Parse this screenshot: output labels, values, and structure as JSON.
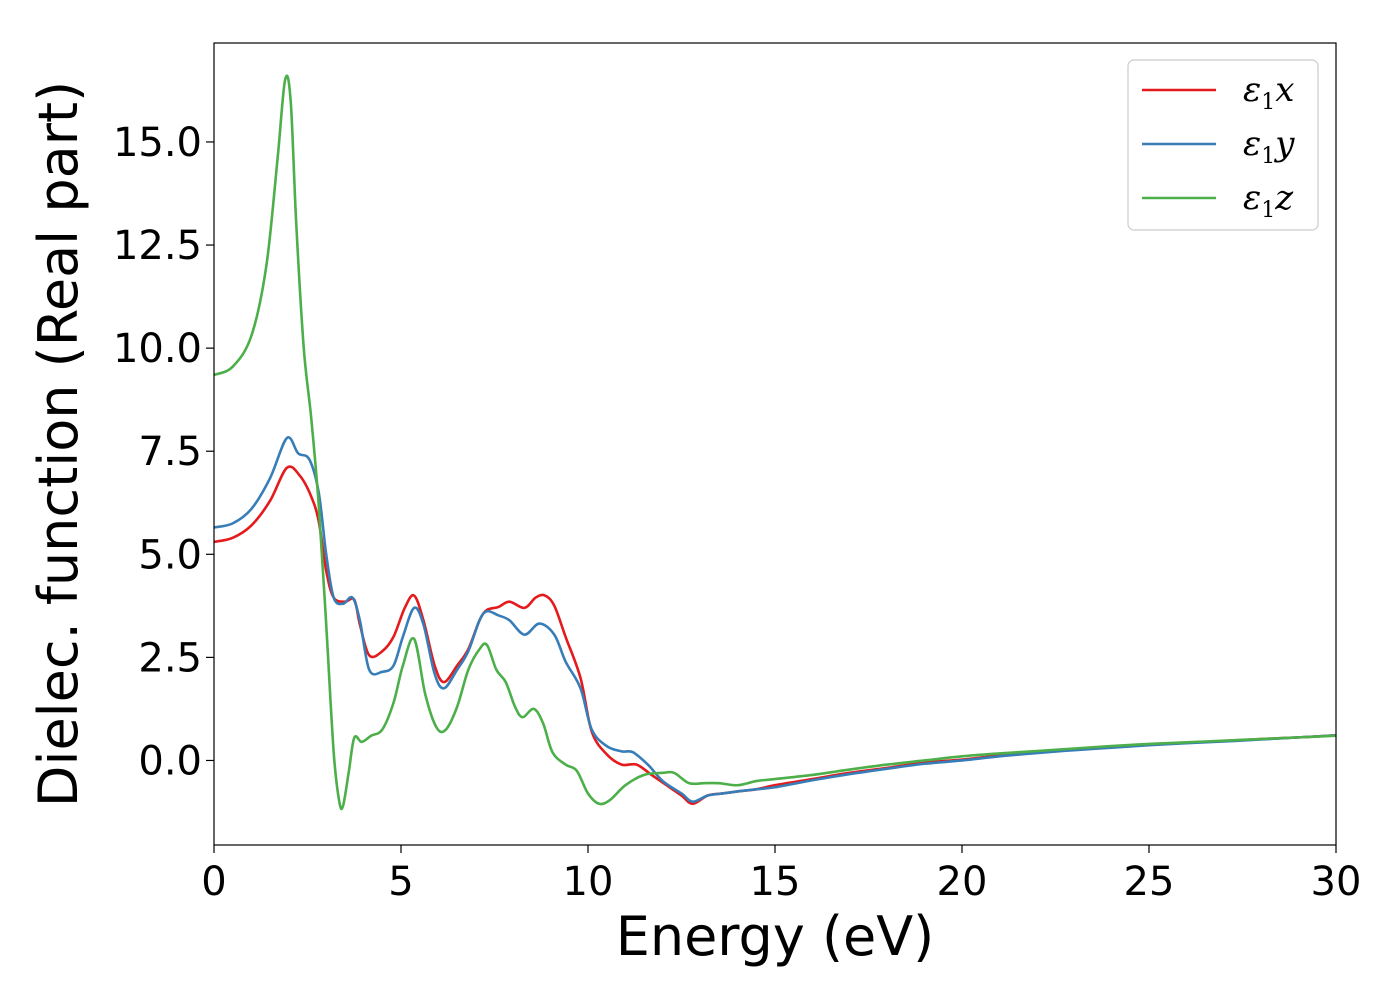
{
  "chart_data": {
    "type": "line",
    "title": "",
    "xlabel": "Energy (eV)",
    "ylabel": "Dielec. function (Real part)",
    "xlim": [
      0,
      30
    ],
    "ylim": [
      -2.05,
      17.4
    ],
    "xticks": [
      0,
      5,
      10,
      15,
      20,
      25,
      30
    ],
    "xtick_labels": [
      "0",
      "5",
      "10",
      "15",
      "20",
      "25",
      "30"
    ],
    "yticks": [
      0.0,
      2.5,
      5.0,
      7.5,
      10.0,
      12.5,
      15.0
    ],
    "ytick_labels": [
      "0.0",
      "2.5",
      "5.0",
      "7.5",
      "10.0",
      "12.5",
      "15.0"
    ],
    "grid": false,
    "legend_position": "top-right",
    "series": [
      {
        "name": "ε₁x",
        "legend_base": "ε",
        "legend_sub": "1",
        "legend_suffix": "x",
        "color": "#e41a1c",
        "points": [
          [
            0,
            5.3
          ],
          [
            0.5,
            5.4
          ],
          [
            1.0,
            5.7
          ],
          [
            1.5,
            6.3
          ],
          [
            1.95,
            7.1
          ],
          [
            2.3,
            6.9
          ],
          [
            2.6,
            6.4
          ],
          [
            2.8,
            5.8
          ],
          [
            3.0,
            4.6
          ],
          [
            3.2,
            3.95
          ],
          [
            3.5,
            3.85
          ],
          [
            3.75,
            3.9
          ],
          [
            3.9,
            3.3
          ],
          [
            4.15,
            2.55
          ],
          [
            4.5,
            2.65
          ],
          [
            4.8,
            3.0
          ],
          [
            5.1,
            3.7
          ],
          [
            5.35,
            4.0
          ],
          [
            5.6,
            3.4
          ],
          [
            5.9,
            2.3
          ],
          [
            6.15,
            1.9
          ],
          [
            6.5,
            2.3
          ],
          [
            6.8,
            2.7
          ],
          [
            7.1,
            3.4
          ],
          [
            7.3,
            3.65
          ],
          [
            7.6,
            3.72
          ],
          [
            7.9,
            3.85
          ],
          [
            8.3,
            3.7
          ],
          [
            8.6,
            3.95
          ],
          [
            8.85,
            4.0
          ],
          [
            9.1,
            3.75
          ],
          [
            9.4,
            3.0
          ],
          [
            9.8,
            2.0
          ],
          [
            10.1,
            0.7
          ],
          [
            10.5,
            0.15
          ],
          [
            10.9,
            -0.1
          ],
          [
            11.3,
            -0.1
          ],
          [
            11.7,
            -0.35
          ],
          [
            12.1,
            -0.6
          ],
          [
            12.5,
            -0.85
          ],
          [
            12.8,
            -1.05
          ],
          [
            13.2,
            -0.85
          ],
          [
            13.6,
            -0.8
          ],
          [
            14.0,
            -0.75
          ],
          [
            14.5,
            -0.7
          ],
          [
            15,
            -0.6
          ],
          [
            16,
            -0.45
          ],
          [
            17,
            -0.3
          ],
          [
            18,
            -0.18
          ],
          [
            19,
            -0.05
          ],
          [
            20,
            0.02
          ],
          [
            21,
            0.12
          ],
          [
            22,
            0.2
          ],
          [
            23,
            0.27
          ],
          [
            24,
            0.33
          ],
          [
            25,
            0.38
          ],
          [
            26,
            0.43
          ],
          [
            27,
            0.47
          ],
          [
            28,
            0.52
          ],
          [
            29,
            0.56
          ],
          [
            30,
            0.61
          ]
        ]
      },
      {
        "name": "ε₁y",
        "legend_base": "ε",
        "legend_sub": "1",
        "legend_suffix": "y",
        "color": "#377eb8",
        "points": [
          [
            0,
            5.65
          ],
          [
            0.5,
            5.75
          ],
          [
            1.0,
            6.1
          ],
          [
            1.5,
            6.85
          ],
          [
            1.95,
            7.82
          ],
          [
            2.25,
            7.45
          ],
          [
            2.55,
            7.3
          ],
          [
            2.8,
            6.5
          ],
          [
            3.0,
            5.0
          ],
          [
            3.2,
            3.95
          ],
          [
            3.45,
            3.8
          ],
          [
            3.7,
            3.95
          ],
          [
            3.9,
            3.4
          ],
          [
            4.15,
            2.2
          ],
          [
            4.5,
            2.15
          ],
          [
            4.8,
            2.3
          ],
          [
            5.05,
            3.0
          ],
          [
            5.35,
            3.7
          ],
          [
            5.6,
            3.3
          ],
          [
            5.9,
            2.1
          ],
          [
            6.15,
            1.75
          ],
          [
            6.5,
            2.2
          ],
          [
            6.8,
            2.65
          ],
          [
            7.1,
            3.4
          ],
          [
            7.3,
            3.62
          ],
          [
            7.6,
            3.52
          ],
          [
            7.9,
            3.4
          ],
          [
            8.3,
            3.05
          ],
          [
            8.7,
            3.32
          ],
          [
            9.1,
            3.05
          ],
          [
            9.4,
            2.4
          ],
          [
            9.8,
            1.75
          ],
          [
            10.1,
            0.75
          ],
          [
            10.5,
            0.35
          ],
          [
            10.9,
            0.22
          ],
          [
            11.2,
            0.2
          ],
          [
            11.6,
            -0.1
          ],
          [
            12.0,
            -0.5
          ],
          [
            12.5,
            -0.8
          ],
          [
            12.8,
            -1.0
          ],
          [
            13.2,
            -0.85
          ],
          [
            13.6,
            -0.8
          ],
          [
            14.0,
            -0.75
          ],
          [
            14.5,
            -0.7
          ],
          [
            15,
            -0.65
          ],
          [
            16,
            -0.48
          ],
          [
            17,
            -0.33
          ],
          [
            18,
            -0.2
          ],
          [
            19,
            -0.08
          ],
          [
            20,
            0.0
          ],
          [
            21,
            0.1
          ],
          [
            22,
            0.18
          ],
          [
            23,
            0.25
          ],
          [
            24,
            0.31
          ],
          [
            25,
            0.37
          ],
          [
            26,
            0.42
          ],
          [
            27,
            0.46
          ],
          [
            28,
            0.51
          ],
          [
            29,
            0.56
          ],
          [
            30,
            0.61
          ]
        ]
      },
      {
        "name": "ε₁z",
        "legend_base": "ε",
        "legend_sub": "1",
        "legend_suffix": "z",
        "color": "#4daf4a",
        "points": [
          [
            0,
            9.35
          ],
          [
            0.5,
            9.55
          ],
          [
            1.0,
            10.3
          ],
          [
            1.4,
            12.0
          ],
          [
            1.7,
            14.6
          ],
          [
            1.9,
            16.5
          ],
          [
            2.05,
            16.0
          ],
          [
            2.2,
            13.0
          ],
          [
            2.4,
            10.0
          ],
          [
            2.6,
            8.3
          ],
          [
            2.8,
            6.2
          ],
          [
            3.0,
            3.3
          ],
          [
            3.2,
            0.2
          ],
          [
            3.35,
            -1.0
          ],
          [
            3.45,
            -1.1
          ],
          [
            3.6,
            -0.3
          ],
          [
            3.75,
            0.55
          ],
          [
            3.95,
            0.45
          ],
          [
            4.2,
            0.6
          ],
          [
            4.5,
            0.75
          ],
          [
            4.8,
            1.4
          ],
          [
            5.05,
            2.3
          ],
          [
            5.35,
            2.95
          ],
          [
            5.65,
            1.6
          ],
          [
            5.95,
            0.8
          ],
          [
            6.2,
            0.75
          ],
          [
            6.5,
            1.3
          ],
          [
            6.8,
            2.2
          ],
          [
            7.1,
            2.7
          ],
          [
            7.3,
            2.8
          ],
          [
            7.55,
            2.2
          ],
          [
            7.8,
            1.9
          ],
          [
            8.05,
            1.3
          ],
          [
            8.25,
            1.05
          ],
          [
            8.55,
            1.25
          ],
          [
            8.8,
            0.9
          ],
          [
            9.05,
            0.2
          ],
          [
            9.4,
            -0.1
          ],
          [
            9.7,
            -0.25
          ],
          [
            10.0,
            -0.8
          ],
          [
            10.3,
            -1.05
          ],
          [
            10.6,
            -0.95
          ],
          [
            11.0,
            -0.6
          ],
          [
            11.5,
            -0.35
          ],
          [
            12.0,
            -0.3
          ],
          [
            12.3,
            -0.3
          ],
          [
            12.7,
            -0.55
          ],
          [
            13.1,
            -0.55
          ],
          [
            13.5,
            -0.55
          ],
          [
            14.0,
            -0.6
          ],
          [
            14.5,
            -0.5
          ],
          [
            15,
            -0.45
          ],
          [
            16,
            -0.35
          ],
          [
            17,
            -0.22
          ],
          [
            18,
            -0.1
          ],
          [
            19,
            0.0
          ],
          [
            20,
            0.1
          ],
          [
            21,
            0.17
          ],
          [
            22,
            0.23
          ],
          [
            23,
            0.29
          ],
          [
            24,
            0.35
          ],
          [
            25,
            0.4
          ],
          [
            26,
            0.44
          ],
          [
            27,
            0.48
          ],
          [
            28,
            0.52
          ],
          [
            29,
            0.56
          ],
          [
            30,
            0.6
          ]
        ]
      }
    ]
  }
}
